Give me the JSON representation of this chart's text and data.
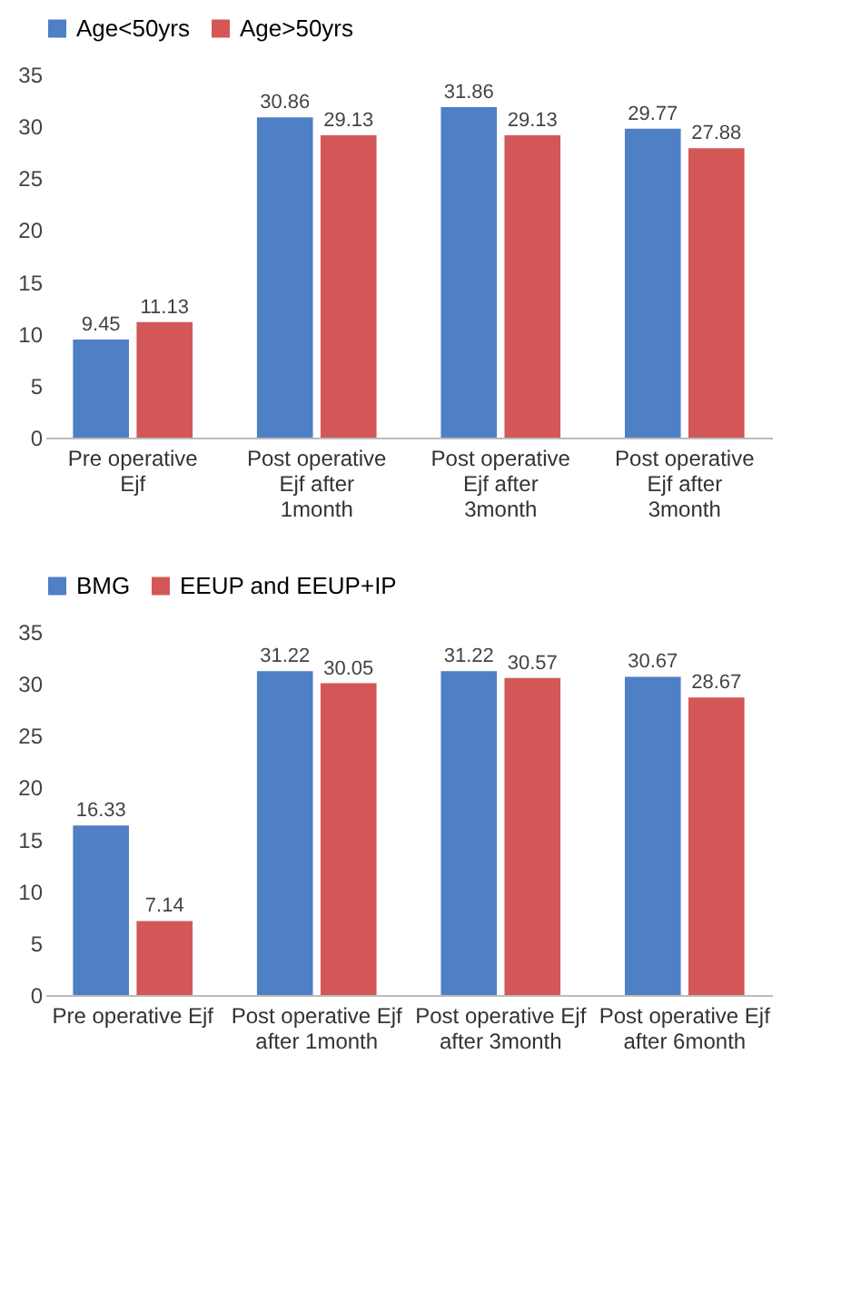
{
  "chart_data": [
    {
      "type": "bar",
      "categories": [
        "Pre operative\nEjf",
        "Post operative\nEjf after\n1month",
        "Post operative\nEjf after\n3month",
        "Post operative\nEjf after\n3month"
      ],
      "series": [
        {
          "name": "Age<50yrs",
          "color": "#4f7fc4",
          "values": [
            9.45,
            30.86,
            31.86,
            29.77
          ]
        },
        {
          "name": "Age>50yrs",
          "color": "#d45757",
          "values": [
            11.13,
            29.13,
            29.13,
            27.88
          ]
        }
      ],
      "ylim": [
        0,
        35
      ],
      "yticks": [
        0,
        5,
        10,
        15,
        20,
        25,
        30,
        35
      ],
      "grid": false,
      "legend": "top",
      "data_labels": true
    },
    {
      "type": "bar",
      "categories": [
        "Pre operative Ejf",
        "Post operative Ejf\nafter  1month",
        "Post operative Ejf\nafter  3month",
        "Post operative Ejf\nafter  6month"
      ],
      "series": [
        {
          "name": "BMG",
          "color": "#4f7fc4",
          "values": [
            16.33,
            31.22,
            31.22,
            30.67
          ]
        },
        {
          "name": "EEUP and EEUP+IP",
          "color": "#d45757",
          "values": [
            7.14,
            30.05,
            30.57,
            28.67
          ]
        }
      ],
      "ylim": [
        0,
        35
      ],
      "yticks": [
        0,
        5,
        10,
        15,
        20,
        25,
        30,
        35
      ],
      "grid": false,
      "legend": "top",
      "data_labels": true
    }
  ]
}
